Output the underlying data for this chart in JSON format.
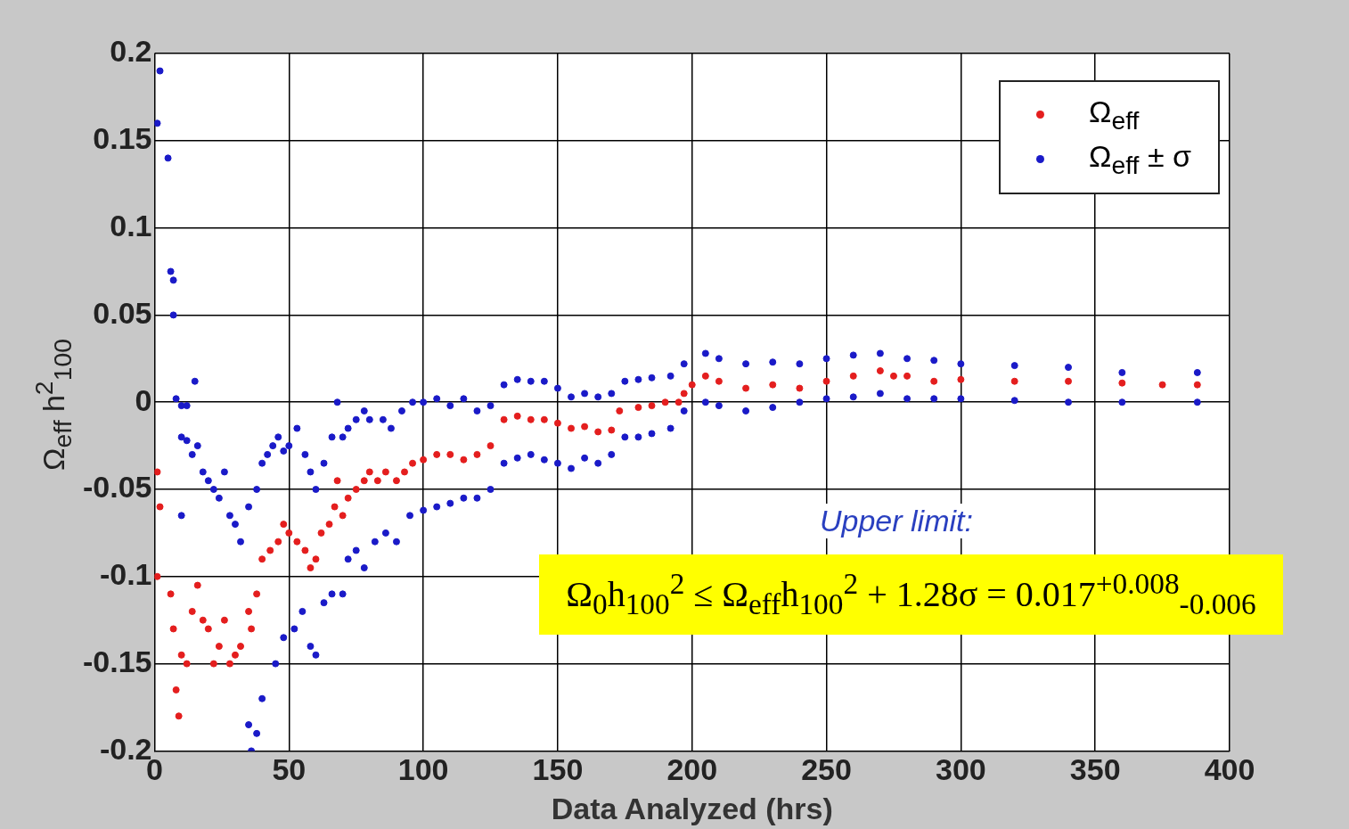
{
  "chart_data": {
    "type": "scatter",
    "xlabel": "Data Analyzed (hrs)",
    "ylabel": "Ω$_{eff}$ h$^{2}$$_{100}$",
    "xlim": [
      0,
      400
    ],
    "xticks": [
      0,
      50,
      100,
      150,
      200,
      250,
      300,
      350,
      400
    ],
    "ylim": [
      -0.2,
      0.2
    ],
    "yticks": [
      -0.2,
      -0.15,
      -0.1,
      -0.05,
      0,
      0.05,
      0.1,
      0.15,
      0.2
    ],
    "grid": true,
    "legend": "top right",
    "marker": "circle",
    "annotations": [
      "Upper limit:",
      "Ω$_{0}$h$_{100}$$^{2}$ ≤ Ω$_{eff}$h$_{100}$$^{2}$ + 1.28σ = 0.017$^{+0.008}$$_{-0.006}$"
    ],
    "series": [
      {
        "name": "Ω$_{eff}$",
        "color": "#e41e1e",
        "x": [
          1,
          2,
          1,
          6,
          7,
          8,
          9,
          10,
          12,
          14,
          16,
          18,
          20,
          22,
          24,
          26,
          28,
          30,
          32,
          35,
          36,
          38,
          40,
          43,
          46,
          48,
          50,
          53,
          56,
          58,
          60,
          62,
          65,
          67,
          68,
          70,
          72,
          75,
          78,
          80,
          83,
          86,
          90,
          93,
          96,
          100,
          105,
          110,
          115,
          120,
          125,
          130,
          135,
          140,
          145,
          150,
          155,
          160,
          165,
          170,
          173,
          180,
          185,
          190,
          195,
          197,
          200,
          205,
          210,
          220,
          230,
          240,
          250,
          260,
          270,
          275,
          280,
          290,
          300,
          320,
          340,
          360,
          375,
          388
        ],
        "values": [
          -0.04,
          -0.06,
          -0.1,
          -0.11,
          -0.13,
          -0.165,
          -0.18,
          -0.145,
          -0.15,
          -0.12,
          -0.105,
          -0.125,
          -0.13,
          -0.15,
          -0.14,
          -0.125,
          -0.15,
          -0.145,
          -0.14,
          -0.12,
          -0.13,
          -0.11,
          -0.09,
          -0.085,
          -0.08,
          -0.07,
          -0.075,
          -0.08,
          -0.085,
          -0.095,
          -0.09,
          -0.075,
          -0.07,
          -0.06,
          -0.045,
          -0.065,
          -0.055,
          -0.05,
          -0.045,
          -0.04,
          -0.045,
          -0.04,
          -0.045,
          -0.04,
          -0.035,
          -0.033,
          -0.03,
          -0.03,
          -0.033,
          -0.03,
          -0.025,
          -0.01,
          -0.008,
          -0.01,
          -0.01,
          -0.012,
          -0.015,
          -0.014,
          -0.017,
          -0.016,
          -0.005,
          -0.003,
          -0.002,
          0,
          0,
          0.005,
          0.01,
          0.015,
          0.012,
          0.008,
          0.01,
          0.008,
          0.012,
          0.015,
          0.018,
          0.015,
          0.015,
          0.012,
          0.013,
          0.012,
          0.012,
          0.011,
          0.01,
          0.01
        ]
      },
      {
        "name": "Ω$_{eff}$ ± σ",
        "color": "#1a1ac8",
        "x": [
          1,
          2,
          5,
          6,
          7,
          7,
          8,
          10,
          12,
          15,
          10,
          12,
          14,
          16,
          18,
          20,
          22,
          24,
          26,
          28,
          30,
          32,
          35,
          38,
          40,
          42,
          44,
          46,
          48,
          50,
          53,
          56,
          58,
          60,
          63,
          66,
          68,
          70,
          72,
          75,
          78,
          80,
          85,
          88,
          92,
          96,
          100,
          105,
          110,
          115,
          120,
          125,
          130,
          135,
          140,
          145,
          150,
          155,
          160,
          165,
          170,
          175,
          180,
          185,
          192,
          197,
          205,
          210,
          220,
          230,
          240,
          250,
          260,
          270,
          280,
          290,
          300,
          320,
          340,
          360,
          388,
          10,
          35,
          36,
          38,
          40,
          45,
          48,
          52,
          55,
          58,
          60,
          63,
          66,
          70,
          72,
          75,
          78,
          82,
          86,
          90,
          95,
          100,
          105,
          110,
          115,
          120,
          125,
          130,
          135,
          140,
          145,
          150,
          155,
          160,
          165,
          170,
          175,
          180,
          185,
          192,
          197,
          205,
          210,
          220,
          230,
          240,
          250,
          260,
          270,
          280,
          290,
          300,
          320,
          340,
          360,
          388
        ],
        "values": [
          0.16,
          0.19,
          0.14,
          0.075,
          0.07,
          0.05,
          0.002,
          -0.002,
          -0.002,
          0.012,
          -0.02,
          -0.022,
          -0.03,
          -0.025,
          -0.04,
          -0.045,
          -0.05,
          -0.055,
          -0.04,
          -0.065,
          -0.07,
          -0.08,
          -0.06,
          -0.05,
          -0.035,
          -0.03,
          -0.025,
          -0.02,
          -0.028,
          -0.025,
          -0.015,
          -0.03,
          -0.04,
          -0.05,
          -0.035,
          -0.02,
          0,
          -0.02,
          -0.015,
          -0.01,
          -0.005,
          -0.01,
          -0.01,
          -0.015,
          -0.005,
          0,
          0,
          0.002,
          -0.002,
          0.002,
          -0.005,
          -0.002,
          0.01,
          0.013,
          0.012,
          0.012,
          0.008,
          0.003,
          0.005,
          0.003,
          0.005,
          0.012,
          0.013,
          0.014,
          0.015,
          0.022,
          0.028,
          0.025,
          0.022,
          0.023,
          0.022,
          0.025,
          0.027,
          0.028,
          0.025,
          0.024,
          0.022,
          0.021,
          0.02,
          0.017,
          0.017,
          -0.065,
          -0.185,
          -0.2,
          -0.19,
          -0.17,
          -0.15,
          -0.135,
          -0.13,
          -0.12,
          -0.14,
          -0.145,
          -0.115,
          -0.11,
          -0.11,
          -0.09,
          -0.085,
          -0.095,
          -0.08,
          -0.075,
          -0.08,
          -0.065,
          -0.062,
          -0.06,
          -0.058,
          -0.055,
          -0.055,
          -0.05,
          -0.035,
          -0.032,
          -0.03,
          -0.033,
          -0.035,
          -0.038,
          -0.032,
          -0.035,
          -0.03,
          -0.02,
          -0.02,
          -0.018,
          -0.015,
          -0.005,
          0,
          -0.002,
          -0.005,
          -0.003,
          0,
          0.002,
          0.003,
          0.005,
          0.002,
          0.002,
          0.002,
          0.001,
          0,
          0,
          0
        ]
      }
    ]
  }
}
